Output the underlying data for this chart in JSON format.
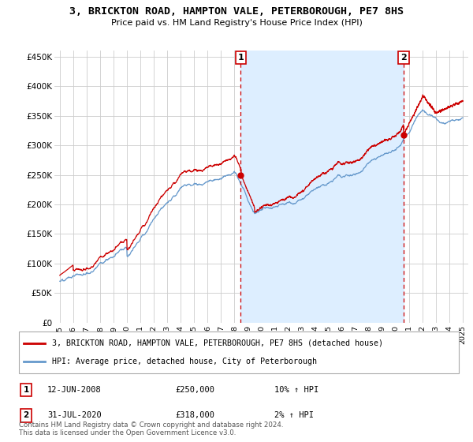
{
  "title": "3, BRICKTON ROAD, HAMPTON VALE, PETERBOROUGH, PE7 8HS",
  "subtitle": "Price paid vs. HM Land Registry's House Price Index (HPI)",
  "ylim": [
    0,
    460000
  ],
  "yticks": [
    0,
    50000,
    100000,
    150000,
    200000,
    250000,
    300000,
    350000,
    400000,
    450000
  ],
  "ytick_labels": [
    "£0",
    "£50K",
    "£100K",
    "£150K",
    "£200K",
    "£250K",
    "£300K",
    "£350K",
    "£400K",
    "£450K"
  ],
  "sale1_date": "12-JUN-2008",
  "sale1_price": 250000,
  "sale1_year": 2008.458,
  "sale1_hpi": "10% ↑ HPI",
  "sale2_date": "31-JUL-2020",
  "sale2_price": 318000,
  "sale2_year": 2020.583,
  "sale2_hpi": "2% ↑ HPI",
  "legend_line1": "3, BRICKTON ROAD, HAMPTON VALE, PETERBOROUGH, PE7 8HS (detached house)",
  "legend_line2": "HPI: Average price, detached house, City of Peterborough",
  "footer": "Contains HM Land Registry data © Crown copyright and database right 2024.\nThis data is licensed under the Open Government Licence v3.0.",
  "line_color_red": "#cc0000",
  "line_color_blue": "#6699cc",
  "shade_color": "#ddeeff",
  "bg_color": "#ffffff",
  "grid_color": "#cccccc",
  "dashed_color": "#cc0000",
  "n_points": 3600,
  "seed": 12
}
